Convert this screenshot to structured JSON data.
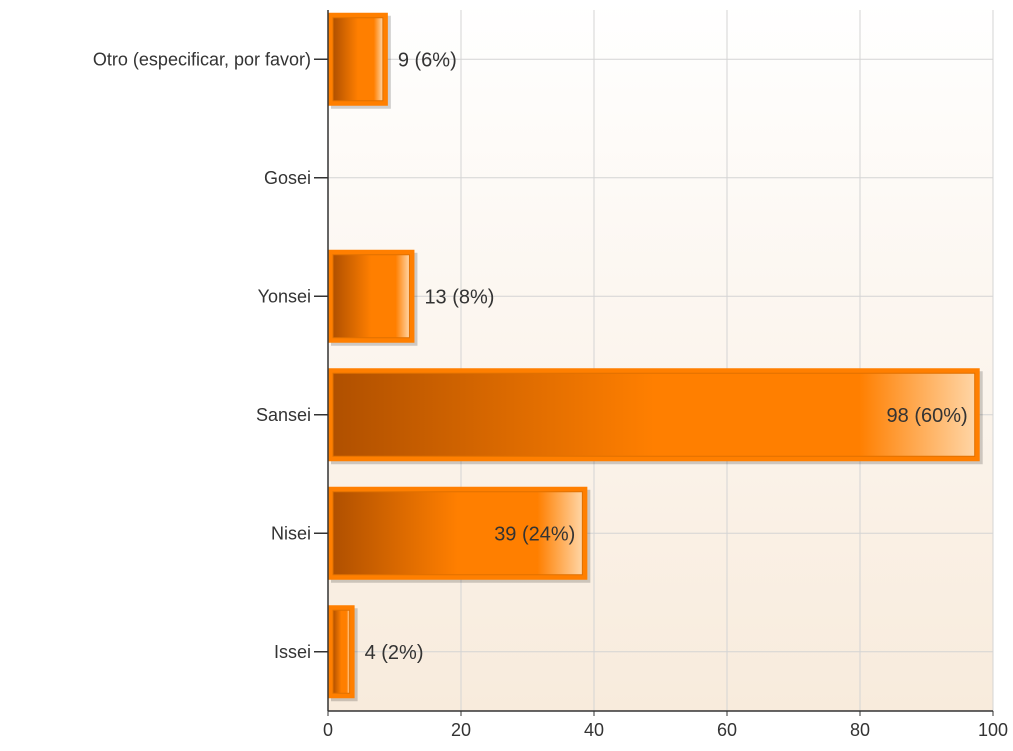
{
  "chart_data": {
    "type": "bar",
    "orientation": "horizontal",
    "title": "",
    "xlabel": "",
    "ylabel": "",
    "categories": [
      "Otro (especificar, por favor)",
      "Gosei",
      "Yonsei",
      "Sansei",
      "Nisei",
      "Issei"
    ],
    "values": [
      9,
      0,
      13,
      98,
      39,
      4
    ],
    "labels": [
      "9 (6%)",
      "",
      "13 (8%)",
      "98 (60%)",
      "39 (24%)",
      "4 (2%)"
    ],
    "label_inside": [
      false,
      false,
      false,
      true,
      true,
      false
    ],
    "xlim": [
      0,
      100
    ],
    "xticks": [
      0,
      20,
      40,
      60,
      80,
      100
    ],
    "xtick_labels": [
      "0",
      "20",
      "40",
      "60",
      "80",
      "100"
    ],
    "grid": true,
    "colors": {
      "bar_dark": "#b05000",
      "bar_mid": "#ff7f00",
      "bar_light": "#ffd5a5",
      "bar_border": "#e07000",
      "bg_top": "#ffffff",
      "bg_bottom": "#f8ebdc",
      "grid": "#d4d4d4",
      "axis": "#333333",
      "text": "#333333"
    }
  }
}
